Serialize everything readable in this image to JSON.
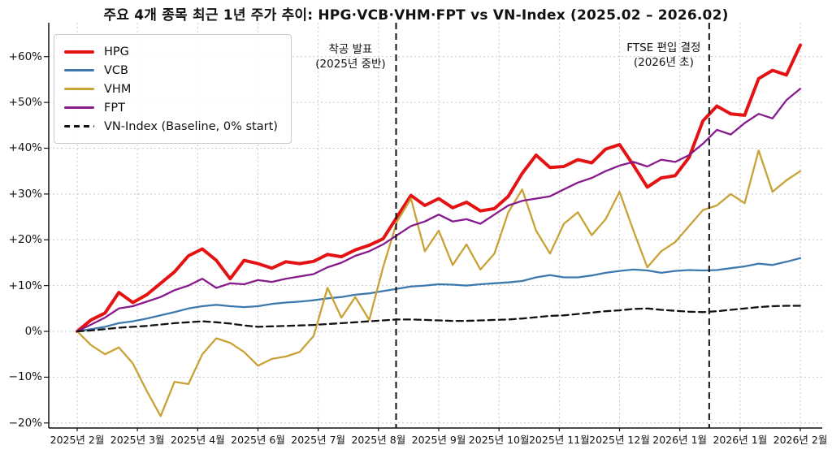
{
  "chart_data": {
    "type": "line",
    "title": "주요 4개 종목 최근 1년 주가 추이: HPG·VCB·VHM·FPT vs VN-Index (2025.02 – 2026.02)",
    "grid": true,
    "legend_position": "upper left",
    "ylim": [
      -21.1,
      67.4
    ],
    "y_tick_values": [
      60,
      50,
      40,
      30,
      20,
      10,
      0,
      -10,
      -20
    ],
    "y_tick_labels": [
      "+60%",
      "+50%",
      "+40%",
      "+30%",
      "+20%",
      "+10%",
      "0%",
      "−10%",
      "−20%"
    ],
    "x_tick_labels": [
      "2025년 2월",
      "2025년 3월",
      "2025년 4월",
      "2025년 6월",
      "2025년 7월",
      "2025년 8월",
      "2025년 9월",
      "2025년 10월",
      "2025년 11월",
      "2025년 12월",
      "2026년 1월",
      "2026년 1월",
      "2026년 2월"
    ],
    "series": [
      {
        "name": "HPG",
        "color": "#e41212",
        "line_width": 4,
        "dash": null,
        "values": [
          0,
          2.5,
          4,
          8.5,
          6.3,
          8,
          10.5,
          13,
          16.5,
          18,
          15.5,
          11.5,
          15.5,
          14.8,
          13.8,
          15.2,
          14.8,
          15.3,
          16.8,
          16.3,
          17.8,
          18.8,
          20.2,
          25,
          29.7,
          27.5,
          29,
          27,
          28.2,
          26.3,
          26.8,
          29.5,
          34.5,
          38.5,
          35.8,
          36,
          37.5,
          36.8,
          39.8,
          40.8,
          36.3,
          31.5,
          33.5,
          34,
          38,
          46,
          49.2,
          47.5,
          47.2,
          55.2,
          57,
          56,
          62.5
        ]
      },
      {
        "name": "VCB",
        "color": "#3e79ad",
        "line_width": 2.3,
        "dash": null,
        "values": [
          0,
          0.5,
          1,
          1.8,
          2.2,
          2.8,
          3.5,
          4.2,
          5,
          5.5,
          5.8,
          5.5,
          5.3,
          5.5,
          6,
          6.3,
          6.5,
          6.8,
          7.2,
          7.5,
          8,
          8.3,
          8.8,
          9.3,
          9.8,
          10,
          10.3,
          10.2,
          10,
          10.3,
          10.5,
          10.7,
          11,
          11.8,
          12.3,
          11.8,
          11.8,
          12.2,
          12.8,
          13.2,
          13.5,
          13.3,
          12.8,
          13.2,
          13.4,
          13.3,
          13.4,
          13.8,
          14.2,
          14.8,
          14.5,
          15.2,
          16
        ]
      },
      {
        "name": "VHM",
        "color": "#c9a236",
        "line_width": 2.3,
        "dash": null,
        "values": [
          0,
          -3,
          -5,
          -3.5,
          -7,
          -13,
          -18.5,
          -11,
          -11.5,
          -5,
          -1.5,
          -2.5,
          -4.5,
          -7.5,
          -6,
          -5.5,
          -4.5,
          -1,
          9.5,
          3,
          7.5,
          2.5,
          14,
          24,
          29,
          17.5,
          22,
          14.5,
          19,
          13.5,
          17,
          26,
          31,
          22,
          17,
          23.5,
          26,
          21,
          24.5,
          30.5,
          22,
          14,
          17.5,
          19.5,
          23,
          26.5,
          27.5,
          30,
          28,
          39.5,
          30.5,
          33,
          35
        ]
      },
      {
        "name": "FPT",
        "color": "#871a8c",
        "line_width": 2.3,
        "dash": null,
        "values": [
          0,
          1.5,
          3,
          5,
          5.5,
          6.5,
          7.5,
          9,
          10,
          11.5,
          9.5,
          10.5,
          10.3,
          11.2,
          10.8,
          11.5,
          12,
          12.5,
          14,
          15,
          16.5,
          17.5,
          19,
          21,
          23,
          24,
          25.5,
          24,
          24.5,
          23.5,
          25.5,
          27.5,
          28.5,
          29,
          29.5,
          31,
          32.5,
          33.5,
          35,
          36.2,
          37,
          36,
          37.5,
          37,
          38.5,
          41,
          44,
          43,
          45.5,
          47.5,
          46.5,
          50.5,
          53
        ]
      },
      {
        "name": "VN-Index (Baseline, 0% start)",
        "color": "#111111",
        "line_width": 2.3,
        "dash": "8 5",
        "values": [
          0,
          0.2,
          0.5,
          0.8,
          1,
          1.2,
          1.5,
          1.8,
          2,
          2.2,
          2,
          1.7,
          1.3,
          1,
          1.1,
          1.2,
          1.3,
          1.4,
          1.6,
          1.8,
          2,
          2.2,
          2.4,
          2.6,
          2.6,
          2.5,
          2.4,
          2.3,
          2.3,
          2.4,
          2.5,
          2.6,
          2.8,
          3.1,
          3.4,
          3.5,
          3.8,
          4.1,
          4.4,
          4.6,
          4.9,
          5,
          4.7,
          4.5,
          4.3,
          4.2,
          4.4,
          4.7,
          5,
          5.3,
          5.5,
          5.6,
          5.6
        ]
      }
    ],
    "annotations": [
      {
        "text_line1": "착공 발표",
        "text_line2": "(2025년 중반)",
        "x_fraction": 0.441
      },
      {
        "text_line1": "FTSE 편입 결정",
        "text_line2": "(2026년 초)",
        "x_fraction": 0.874
      }
    ]
  }
}
